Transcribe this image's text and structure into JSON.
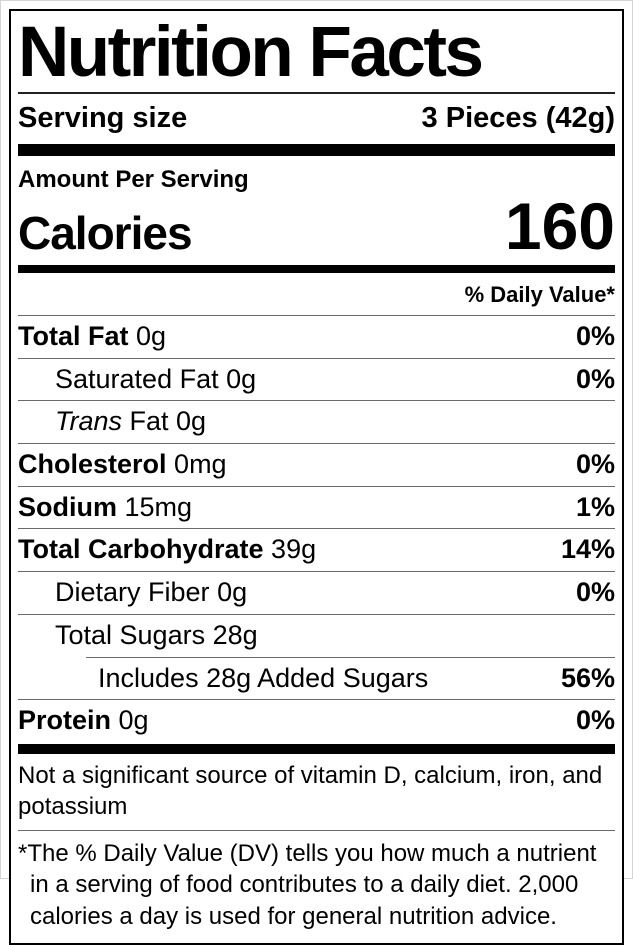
{
  "nutrition_label": {
    "title": "Nutrition Facts",
    "serving_size_label": "Serving size",
    "serving_size_value": "3 Pieces (42g)",
    "amount_per_serving_label": "Amount Per Serving",
    "calories_label": "Calories",
    "calories_value": "160",
    "daily_value_header": "% Daily Value*",
    "rows": [
      {
        "name": "Total Fat",
        "amount": "0g",
        "daily_value": "0%"
      },
      {
        "name": "Saturated Fat",
        "amount": "0g",
        "daily_value": "0%"
      },
      {
        "name": "Trans",
        "amount": "Fat 0g",
        "daily_value": ""
      },
      {
        "name": "Cholesterol",
        "amount": "0mg",
        "daily_value": "0%"
      },
      {
        "name": "Sodium",
        "amount": "15mg",
        "daily_value": "1%"
      },
      {
        "name": "Total Carbohydrate",
        "amount": "39g",
        "daily_value": "14%"
      },
      {
        "name": "Dietary Fiber",
        "amount": "0g",
        "daily_value": "0%"
      },
      {
        "name": "Total Sugars",
        "amount": "28g",
        "daily_value": ""
      },
      {
        "name": "Includes 28g Added Sugars",
        "amount": "",
        "daily_value": "56%"
      },
      {
        "name": "Protein",
        "amount": "0g",
        "daily_value": "0%"
      }
    ],
    "insignificant_note": "Not a significant source of vitamin D, calcium, iron, and potassium",
    "footnote": "*The % Daily Value (DV) tells you how much a nutrient in a serving of food contributes to a daily diet. 2,000 calories a day is used for general nutrition advice.",
    "colors": {
      "text": "#000000",
      "background": "#ffffff",
      "hairline": "#6a6a6a"
    }
  }
}
